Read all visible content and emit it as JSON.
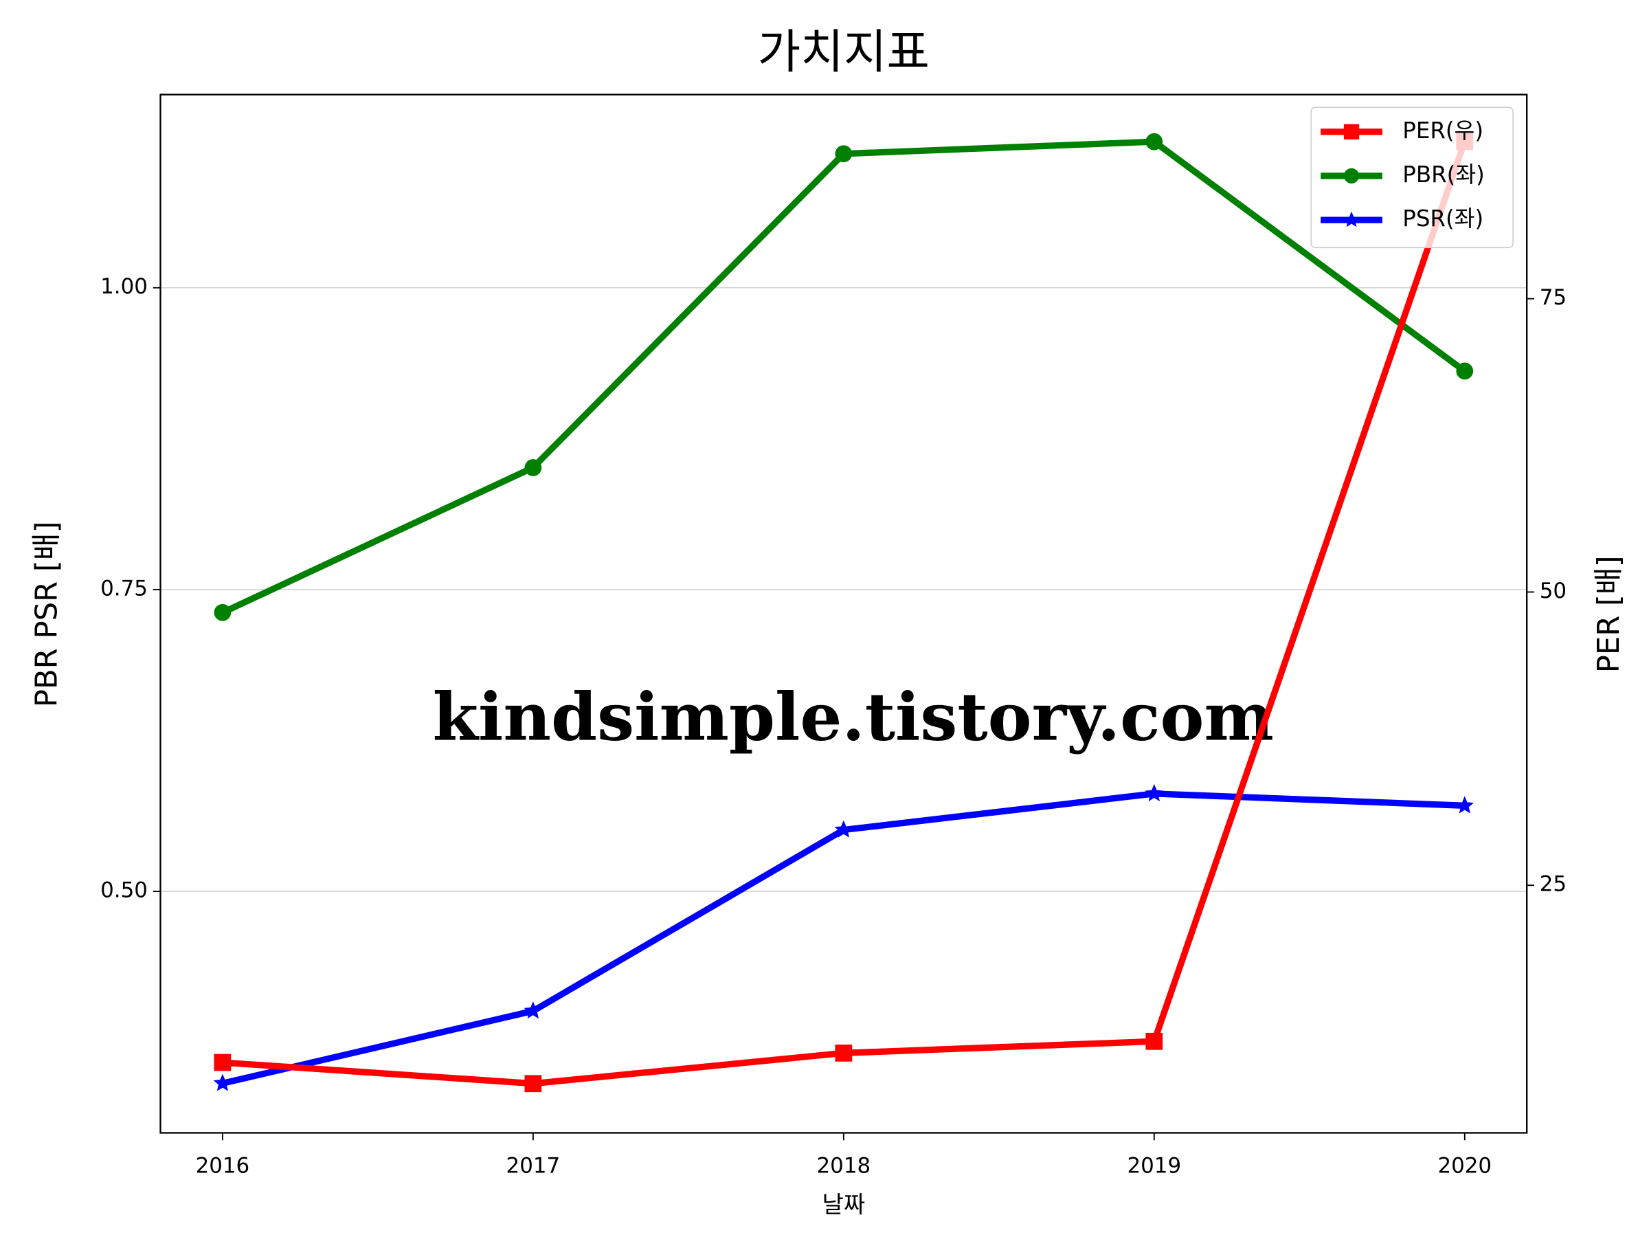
{
  "chart_data": {
    "type": "line",
    "title": "가치지표",
    "xlabel": "날짜",
    "ylabel": "PBR PSR [배]",
    "y2label": "PER [배]",
    "ylabel_color": "#008000",
    "y2label_color": "#ff0000",
    "watermark": "kindsimple.tistory.com",
    "x": [
      2016,
      2017,
      2018,
      2019,
      2020
    ],
    "xlim": [
      2015.8,
      2020.2
    ],
    "xticks": [
      2016,
      2017,
      2018,
      2019,
      2020
    ],
    "ylim": [
      0.3,
      1.16
    ],
    "yticks": [
      {
        "value": 0.5,
        "label": "0.50"
      },
      {
        "value": 0.75,
        "label": "0.75"
      },
      {
        "value": 1.0,
        "label": "1.00"
      }
    ],
    "y2lim": [
      3.9,
      92.4
    ],
    "y2ticks": [
      25,
      50,
      75
    ],
    "grid": true,
    "legend": "upper right",
    "series": [
      {
        "name": "PER(우)",
        "color": "#ff0000",
        "marker": "square",
        "axis": "y2",
        "values": [
          9.9,
          8.1,
          10.7,
          11.7,
          88.4
        ]
      },
      {
        "name": "PBR(좌)",
        "color": "#008000",
        "marker": "circle",
        "values": [
          0.731,
          0.851,
          1.111,
          1.121,
          0.931
        ]
      },
      {
        "name": "PSR(좌)",
        "color": "#0000ff",
        "marker": "star",
        "values": [
          0.341,
          0.401,
          0.551,
          0.581,
          0.571
        ]
      }
    ]
  }
}
